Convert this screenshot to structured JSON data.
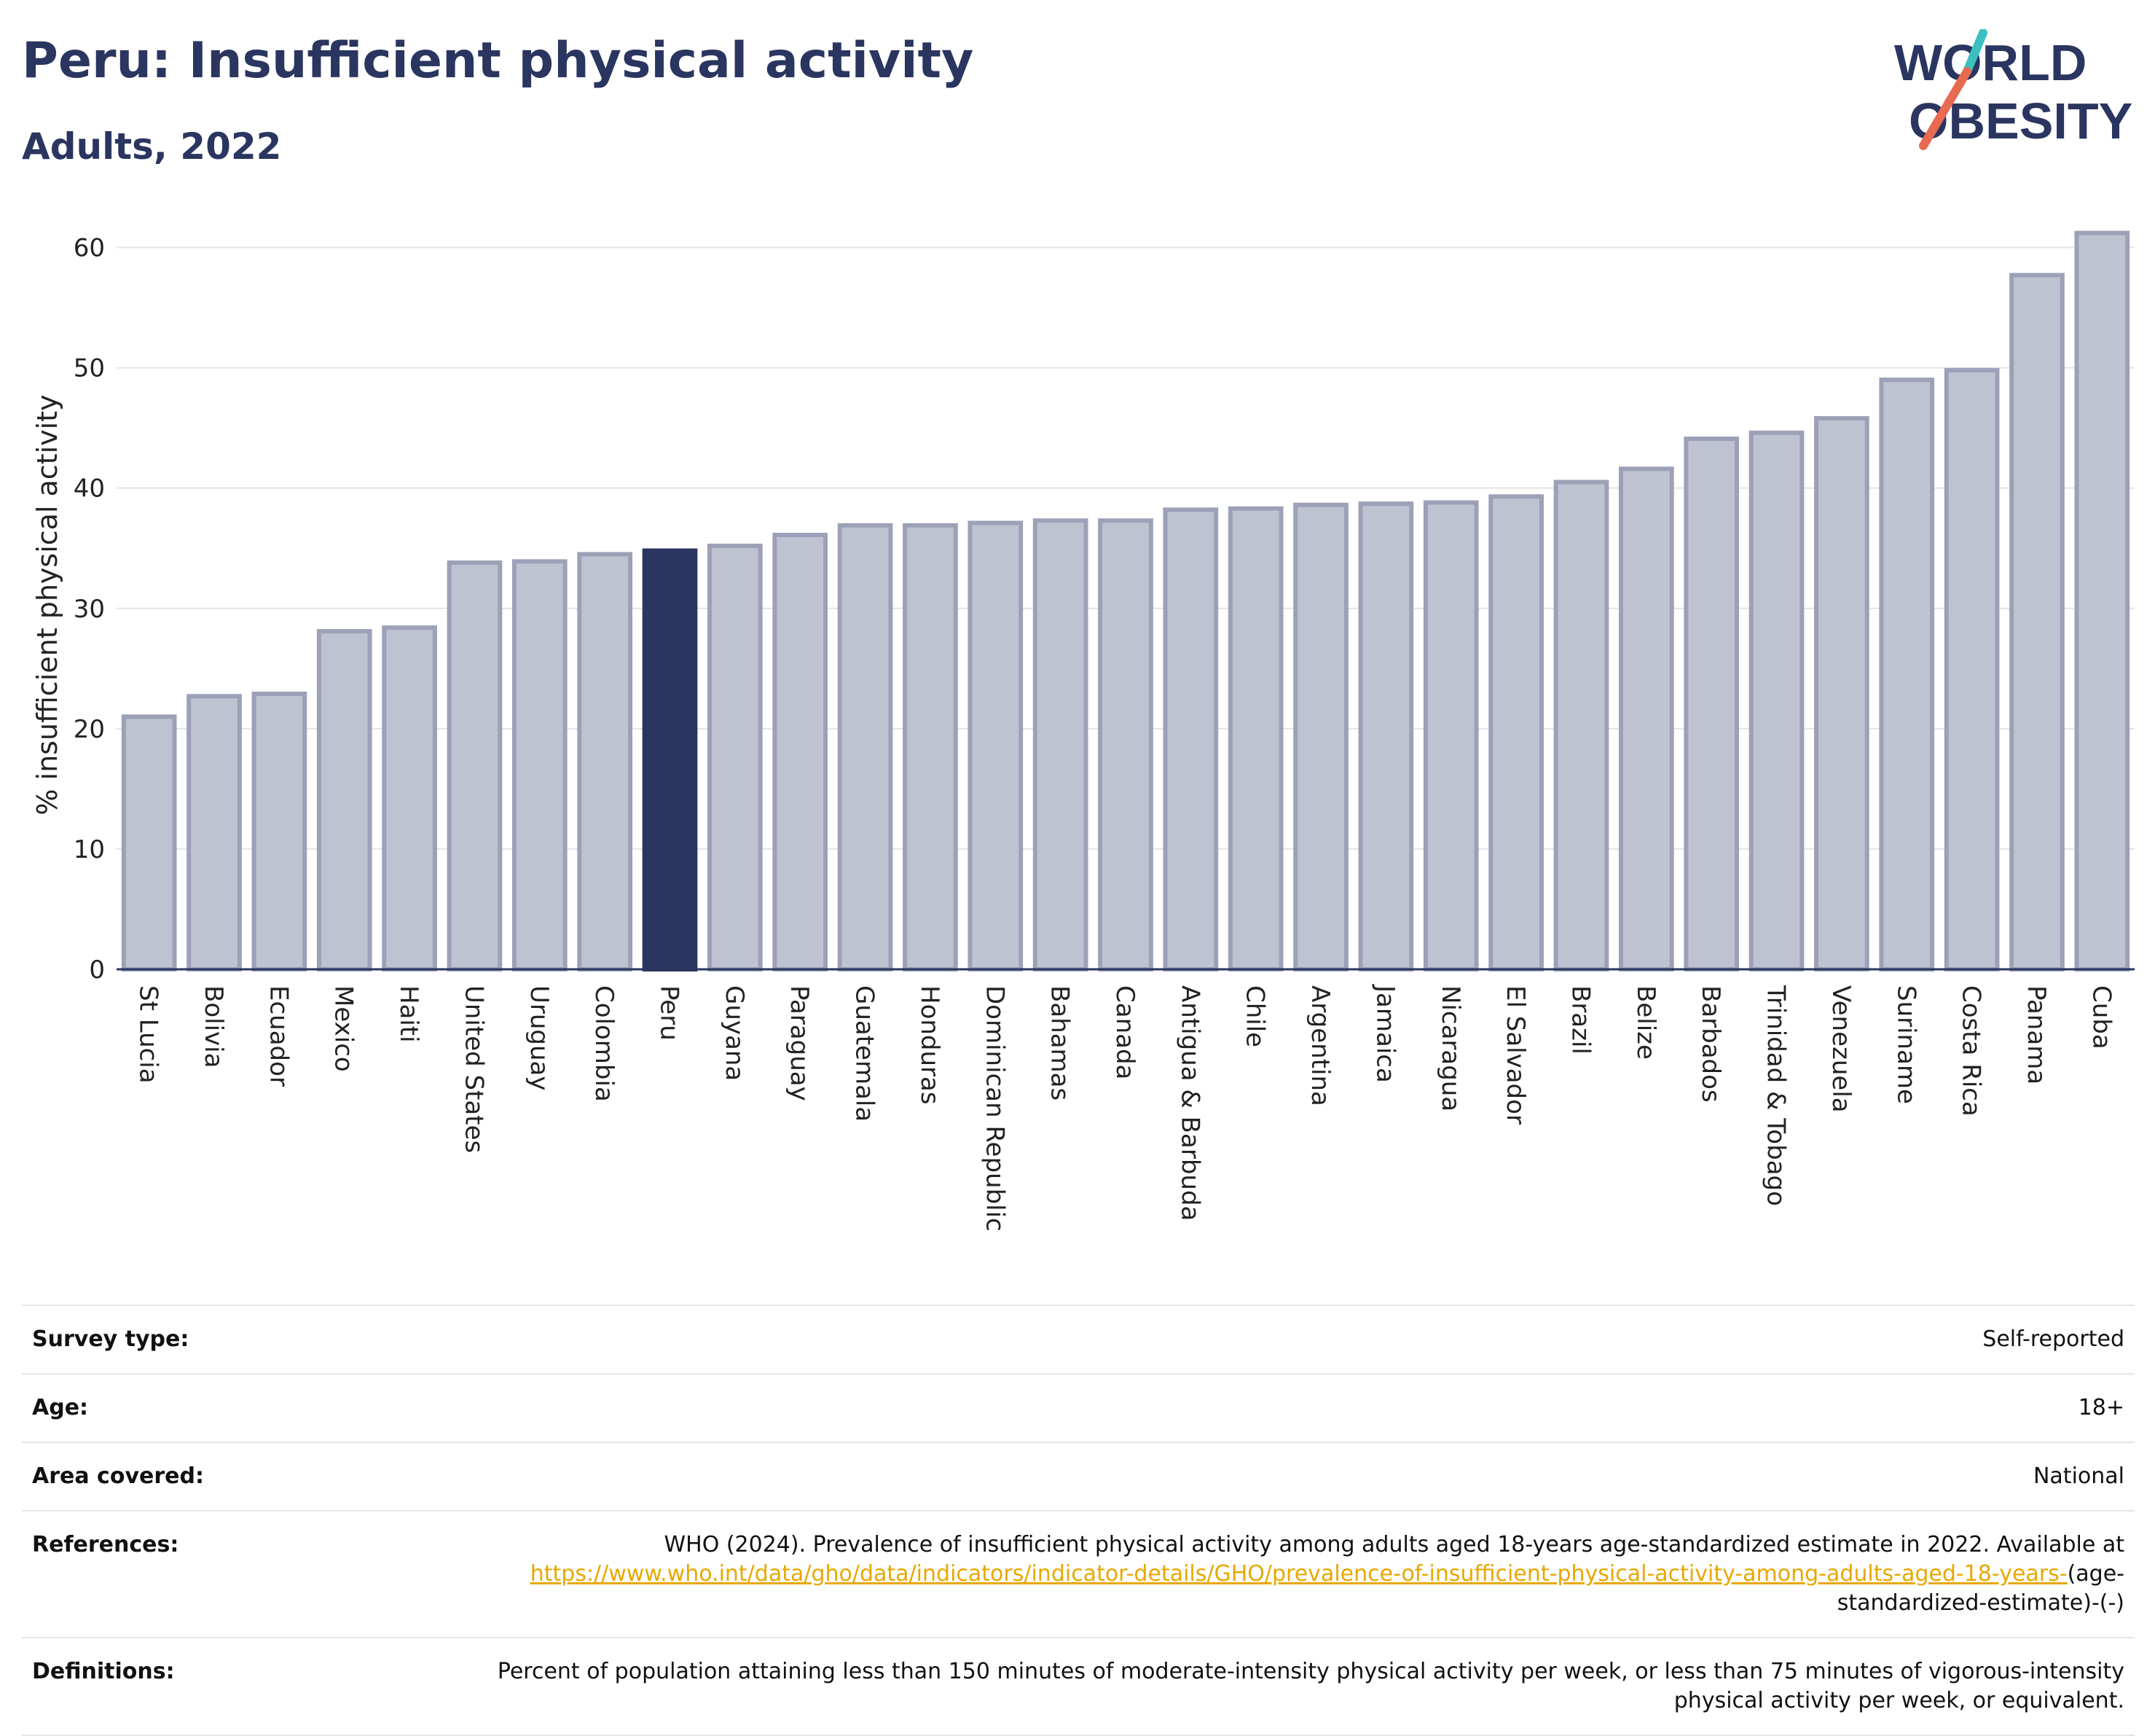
{
  "title": "Peru: Insufficient physical activity",
  "subtitle": "Adults, 2022",
  "logo": {
    "line1": "WORLD",
    "line2": "OBESITY",
    "accent_colors": [
      "#3bbfbf",
      "#e86a50"
    ]
  },
  "colors": {
    "bar": "#bfc2d1",
    "bar_edge": "#9ca1b8",
    "highlight": "#2a3560",
    "grid": "#e4e4e4",
    "axis": "#2a3560"
  },
  "chart_data": {
    "type": "bar",
    "ylabel": "% insufficient physical activity",
    "ylim": [
      0,
      63
    ],
    "yticks": [
      0,
      10,
      20,
      30,
      40,
      50,
      60
    ],
    "grid": true,
    "highlight": "Peru",
    "categories": [
      "St Lucia",
      "Bolivia",
      "Ecuador",
      "Mexico",
      "Haiti",
      "United States",
      "Uruguay",
      "Colombia",
      "Peru",
      "Guyana",
      "Paraguay",
      "Guatemala",
      "Honduras",
      "Dominican Republic",
      "Bahamas",
      "Canada",
      "Antigua & Barbuda",
      "Chile",
      "Argentina",
      "Jamaica",
      "Nicaragua",
      "El Salvador",
      "Brazil",
      "Belize",
      "Barbados",
      "Trinidad & Tobago",
      "Venezuela",
      "Suriname",
      "Costa Rica",
      "Panama",
      "Cuba"
    ],
    "values": [
      21.0,
      22.7,
      22.9,
      28.1,
      28.4,
      33.8,
      33.9,
      34.5,
      34.8,
      35.2,
      36.1,
      36.9,
      36.9,
      37.1,
      37.3,
      37.3,
      38.2,
      38.3,
      38.6,
      38.7,
      38.8,
      39.3,
      40.5,
      41.6,
      44.1,
      44.6,
      45.8,
      49.0,
      49.8,
      57.7,
      61.2
    ]
  },
  "info": {
    "survey_type": {
      "label": "Survey type:",
      "value": "Self-reported"
    },
    "age": {
      "label": "Age:",
      "value": "18+"
    },
    "area": {
      "label": "Area covered:",
      "value": "National"
    },
    "references": {
      "label": "References:",
      "text": "WHO (2024). Prevalence of insufficient physical activity among adults aged 18-years age-standardized estimate in 2022. Available at",
      "link": "https://www.who.int/data/gho/data/indicators/indicator-details/GHO/prevalence-of-insufficient-physical-activity-among-adults-aged-18-years-",
      "suffix": "(age-standardized-estimate)-(-)"
    },
    "definitions": {
      "label": "Definitions:",
      "value": "Percent of population attaining less than 150 minutes of moderate-intensity physical activity per week, or less than 75 minutes of vigorous-intensity physical activity per week, or equivalent."
    }
  }
}
